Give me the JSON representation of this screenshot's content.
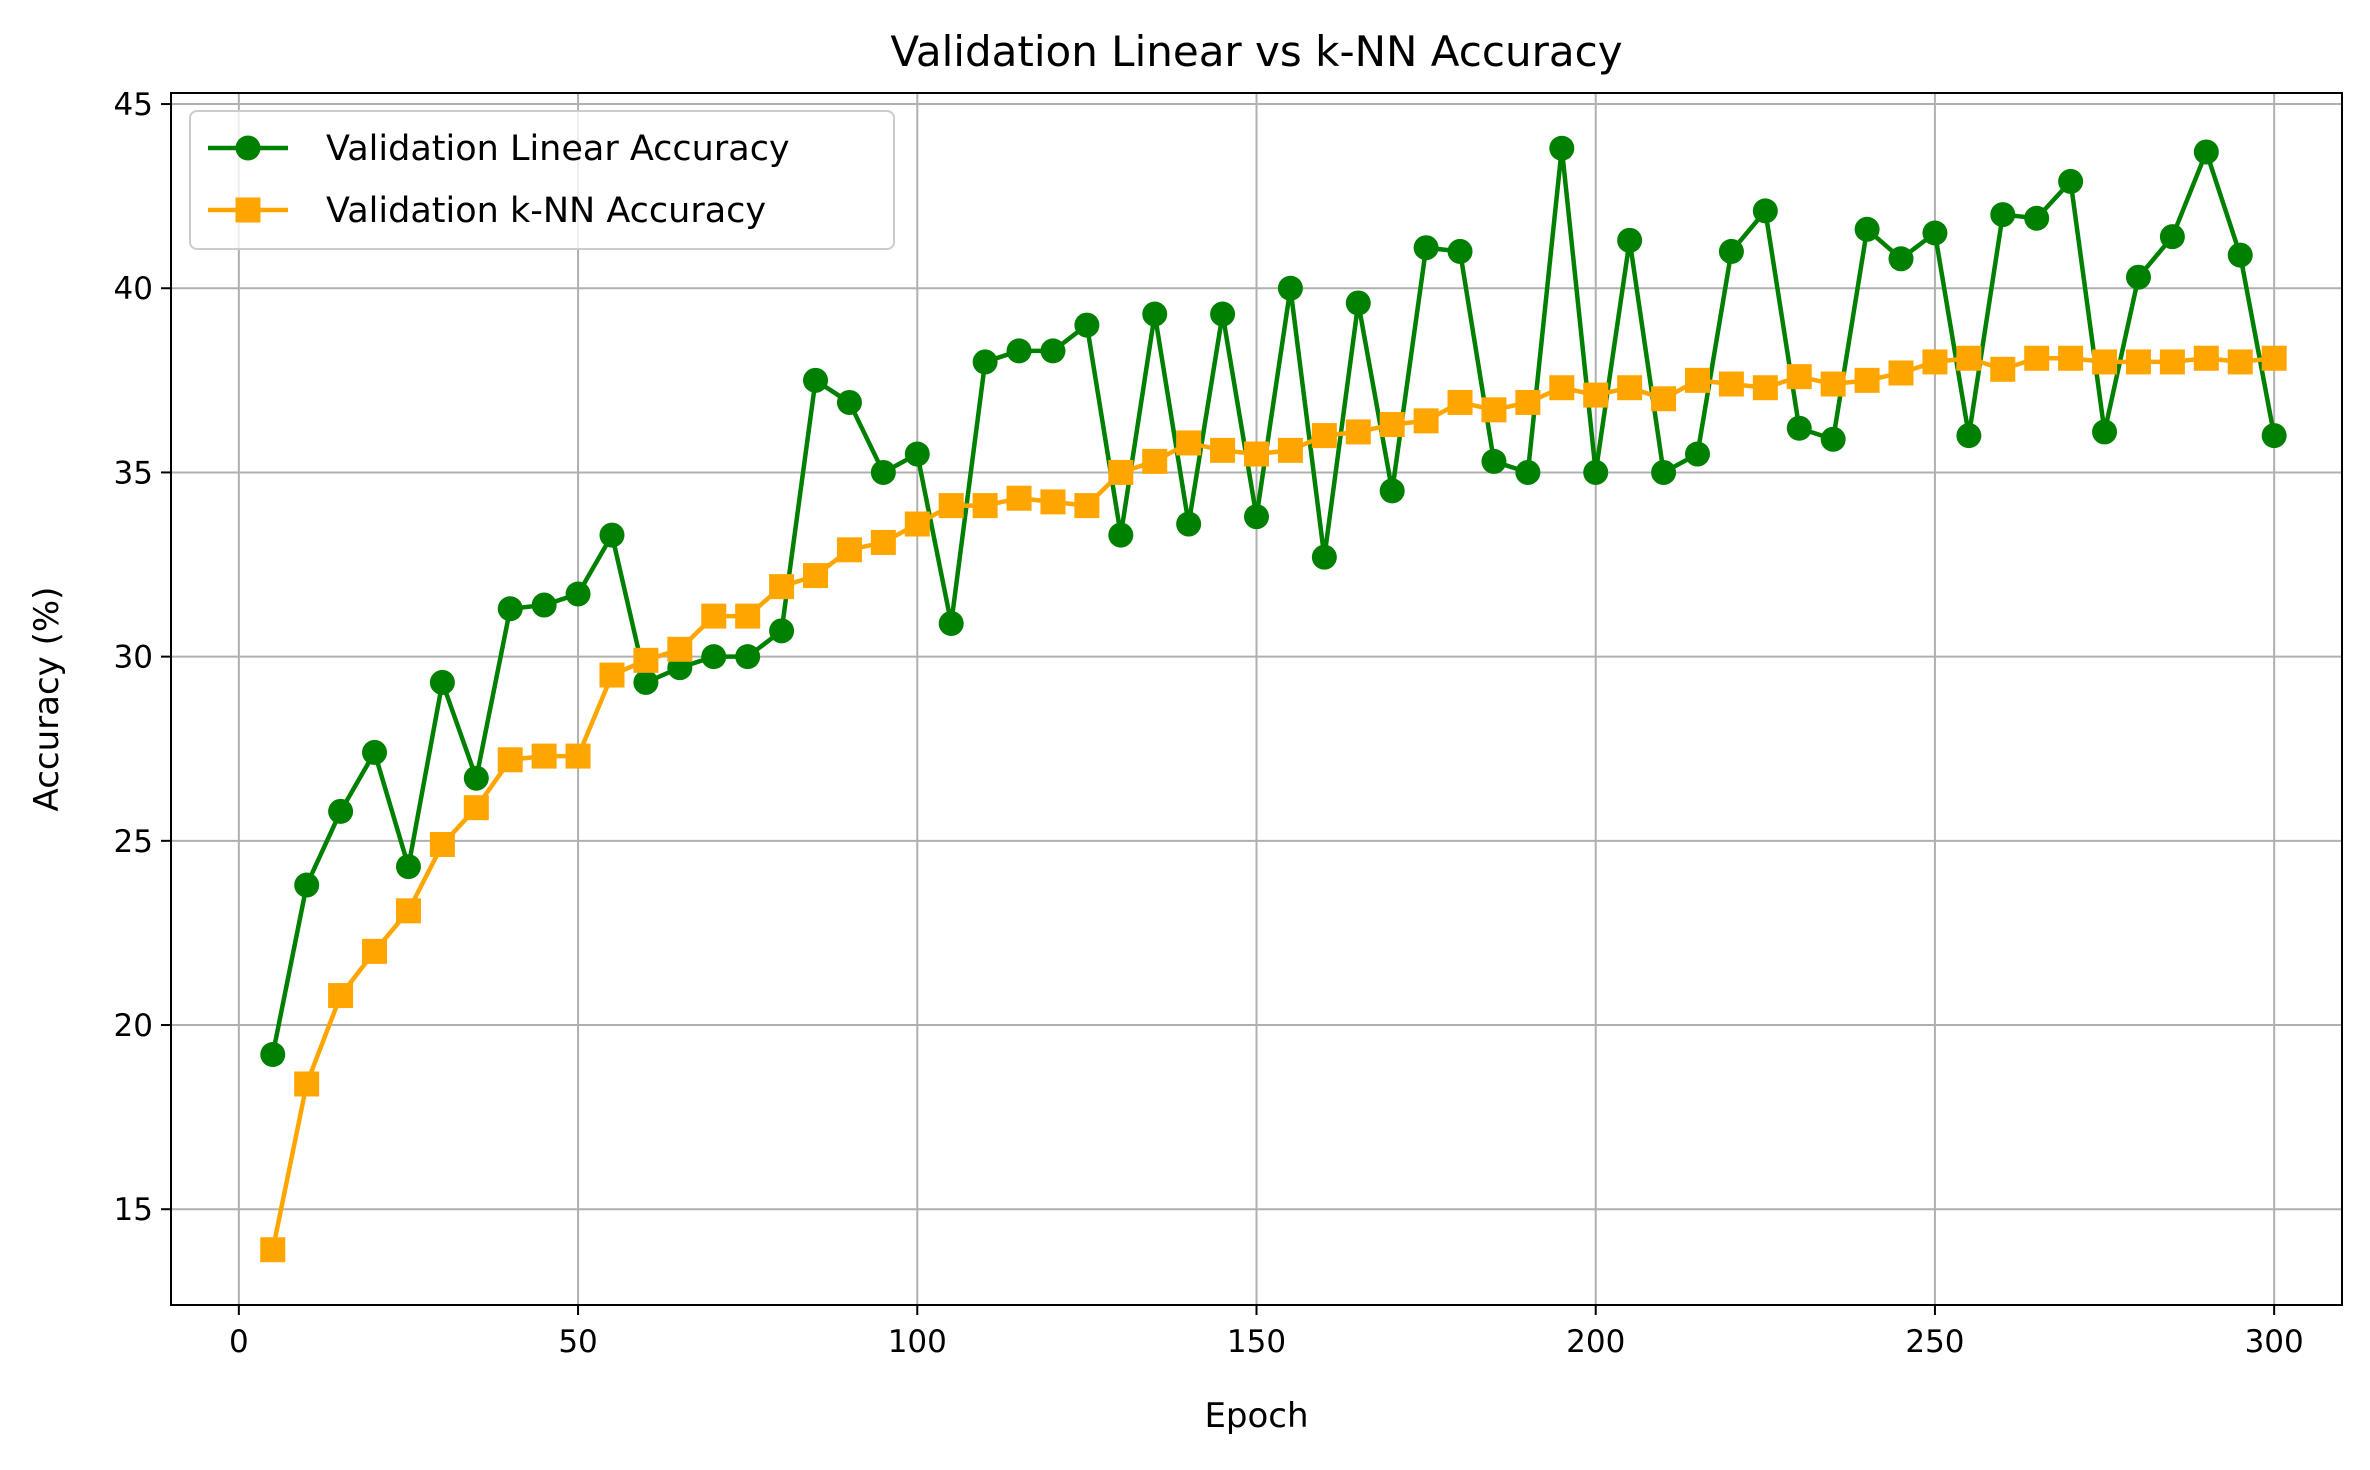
{
  "chart_data": {
    "type": "line",
    "title": "Validation Linear vs k-NN Accuracy",
    "xlabel": "Epoch",
    "ylabel": "Accuracy (%)",
    "xlim": [
      -10,
      310
    ],
    "ylim": [
      12.4,
      45.3
    ],
    "x_ticks": [
      0,
      50,
      100,
      150,
      200,
      250,
      300
    ],
    "y_ticks": [
      15,
      20,
      25,
      30,
      35,
      40,
      45
    ],
    "grid": true,
    "legend_position": "top-left",
    "x": [
      5,
      10,
      15,
      20,
      25,
      30,
      35,
      40,
      45,
      50,
      55,
      60,
      65,
      70,
      75,
      80,
      85,
      90,
      95,
      100,
      105,
      110,
      115,
      120,
      125,
      130,
      135,
      140,
      145,
      150,
      155,
      160,
      165,
      170,
      175,
      180,
      185,
      190,
      195,
      200,
      205,
      210,
      215,
      220,
      225,
      230,
      235,
      240,
      245,
      250,
      255,
      260,
      265,
      270,
      275,
      280,
      285,
      290,
      295,
      300
    ],
    "series": [
      {
        "name": "Validation Linear Accuracy",
        "color": "#008000",
        "marker": "circle",
        "values": [
          19.2,
          23.8,
          25.8,
          27.4,
          24.3,
          29.3,
          26.7,
          31.3,
          31.4,
          31.7,
          33.3,
          29.3,
          29.7,
          30.0,
          30.0,
          30.7,
          37.5,
          36.9,
          35.0,
          35.5,
          30.9,
          38.0,
          38.3,
          38.3,
          39.0,
          33.3,
          39.3,
          33.6,
          39.3,
          33.8,
          40.0,
          32.7,
          39.6,
          34.5,
          41.1,
          41.0,
          35.3,
          35.0,
          43.8,
          35.0,
          41.3,
          35.0,
          35.5,
          41.0,
          42.1,
          36.2,
          35.9,
          41.6,
          40.8,
          41.5,
          36.0,
          42.0,
          41.9,
          42.9,
          36.1,
          40.3,
          41.4,
          43.7,
          40.9,
          36.0
        ]
      },
      {
        "name": "Validation k-NN Accuracy",
        "color": "#FFA500",
        "marker": "square",
        "values": [
          13.9,
          18.4,
          20.8,
          22.0,
          23.1,
          24.9,
          25.9,
          27.2,
          27.3,
          27.3,
          29.5,
          29.9,
          30.2,
          31.1,
          31.1,
          31.9,
          32.2,
          32.9,
          33.1,
          33.6,
          34.1,
          34.1,
          34.3,
          34.2,
          34.1,
          35.0,
          35.3,
          35.8,
          35.6,
          35.5,
          35.6,
          36.0,
          36.1,
          36.3,
          36.4,
          36.9,
          36.7,
          36.9,
          37.3,
          37.1,
          37.3,
          37.0,
          37.5,
          37.4,
          37.3,
          37.6,
          37.4,
          37.5,
          37.7,
          38.0,
          38.1,
          37.8,
          38.1,
          38.1,
          38.0,
          38.0,
          38.0,
          38.1,
          38.0,
          38.1
        ]
      }
    ]
  }
}
